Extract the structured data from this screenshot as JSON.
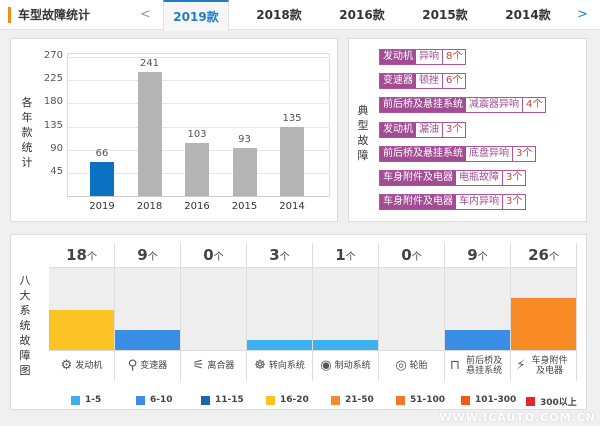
{
  "header": {
    "title": "车型故障统计",
    "prev": "<",
    "next": ">",
    "tabs": [
      "2019款",
      "2018款",
      "2016款",
      "2015款",
      "2014款"
    ],
    "active": 0
  },
  "chart_data": {
    "type": "bar",
    "ylabel": "各年款统计",
    "categories": [
      "2019",
      "2018",
      "2016",
      "2015",
      "2014"
    ],
    "values": [
      66,
      241,
      103,
      93,
      135
    ],
    "yticks": [
      "45",
      "90",
      "135",
      "180",
      "225",
      "270"
    ],
    "ylim": [
      0,
      270
    ],
    "colors": [
      "#0a72c0",
      "#b4b4b4",
      "#b4b4b4",
      "#b4b4b4",
      "#b4b4b4"
    ]
  },
  "typical": {
    "label": "典型故障",
    "items": [
      {
        "system": "发动机",
        "issue": "异响",
        "count": "8个"
      },
      {
        "system": "变速器",
        "issue": "顿挫",
        "count": "6个"
      },
      {
        "system": "前后桥及悬挂系统",
        "issue": "减震器异响",
        "count": "4个"
      },
      {
        "system": "发动机",
        "issue": "漏油",
        "count": "3个"
      },
      {
        "system": "前后桥及悬挂系统",
        "issue": "底盘异响",
        "count": "3个"
      },
      {
        "system": "车身附件及电器",
        "issue": "电瓶故障",
        "count": "3个"
      },
      {
        "system": "车身附件及电器",
        "issue": "车内异响",
        "count": "3个"
      }
    ]
  },
  "systems": {
    "label": "八大系统故障图",
    "unit": "个",
    "items": [
      {
        "name": "发动机",
        "count": 18,
        "icon": "engine-icon",
        "glyph": "⚙"
      },
      {
        "name": "变速器",
        "count": 9,
        "icon": "gear-shift-icon",
        "glyph": "⚲"
      },
      {
        "name": "离合器",
        "count": 0,
        "icon": "clutch-icon",
        "glyph": "⚟"
      },
      {
        "name": "转向系统",
        "count": 3,
        "icon": "steering-wheel-icon",
        "glyph": "☸"
      },
      {
        "name": "制动系统",
        "count": 1,
        "icon": "brake-disc-icon",
        "glyph": "◉"
      },
      {
        "name": "轮胎",
        "count": 0,
        "icon": "tire-icon",
        "glyph": "◎"
      },
      {
        "name": "前后桥及悬挂系统",
        "count": 9,
        "icon": "suspension-icon",
        "glyph": "⊓"
      },
      {
        "name": "车身附件及电器",
        "count": 26,
        "icon": "battery-icon",
        "glyph": "⚡"
      }
    ]
  },
  "legend": [
    {
      "label": "1-5",
      "color": "#3bb1f0",
      "min": 1,
      "max": 5
    },
    {
      "label": "6-10",
      "color": "#3a8ee6",
      "min": 6,
      "max": 10
    },
    {
      "label": "11-15",
      "color": "#1569b3",
      "min": 11,
      "max": 15
    },
    {
      "label": "16-20",
      "color": "#fcc325",
      "min": 16,
      "max": 20
    },
    {
      "label": "21-50",
      "color": "#f98b27",
      "min": 21,
      "max": 50
    },
    {
      "label": "51-100",
      "color": "#f7752a",
      "min": 51,
      "max": 100
    },
    {
      "label": "101-300",
      "color": "#f55a1c",
      "min": 101,
      "max": 300
    },
    {
      "label": "300以上",
      "color": "#e8242c",
      "min": 301,
      "max": 100000
    }
  ],
  "watermark": "WWW.ICAUTO.COM.CN"
}
